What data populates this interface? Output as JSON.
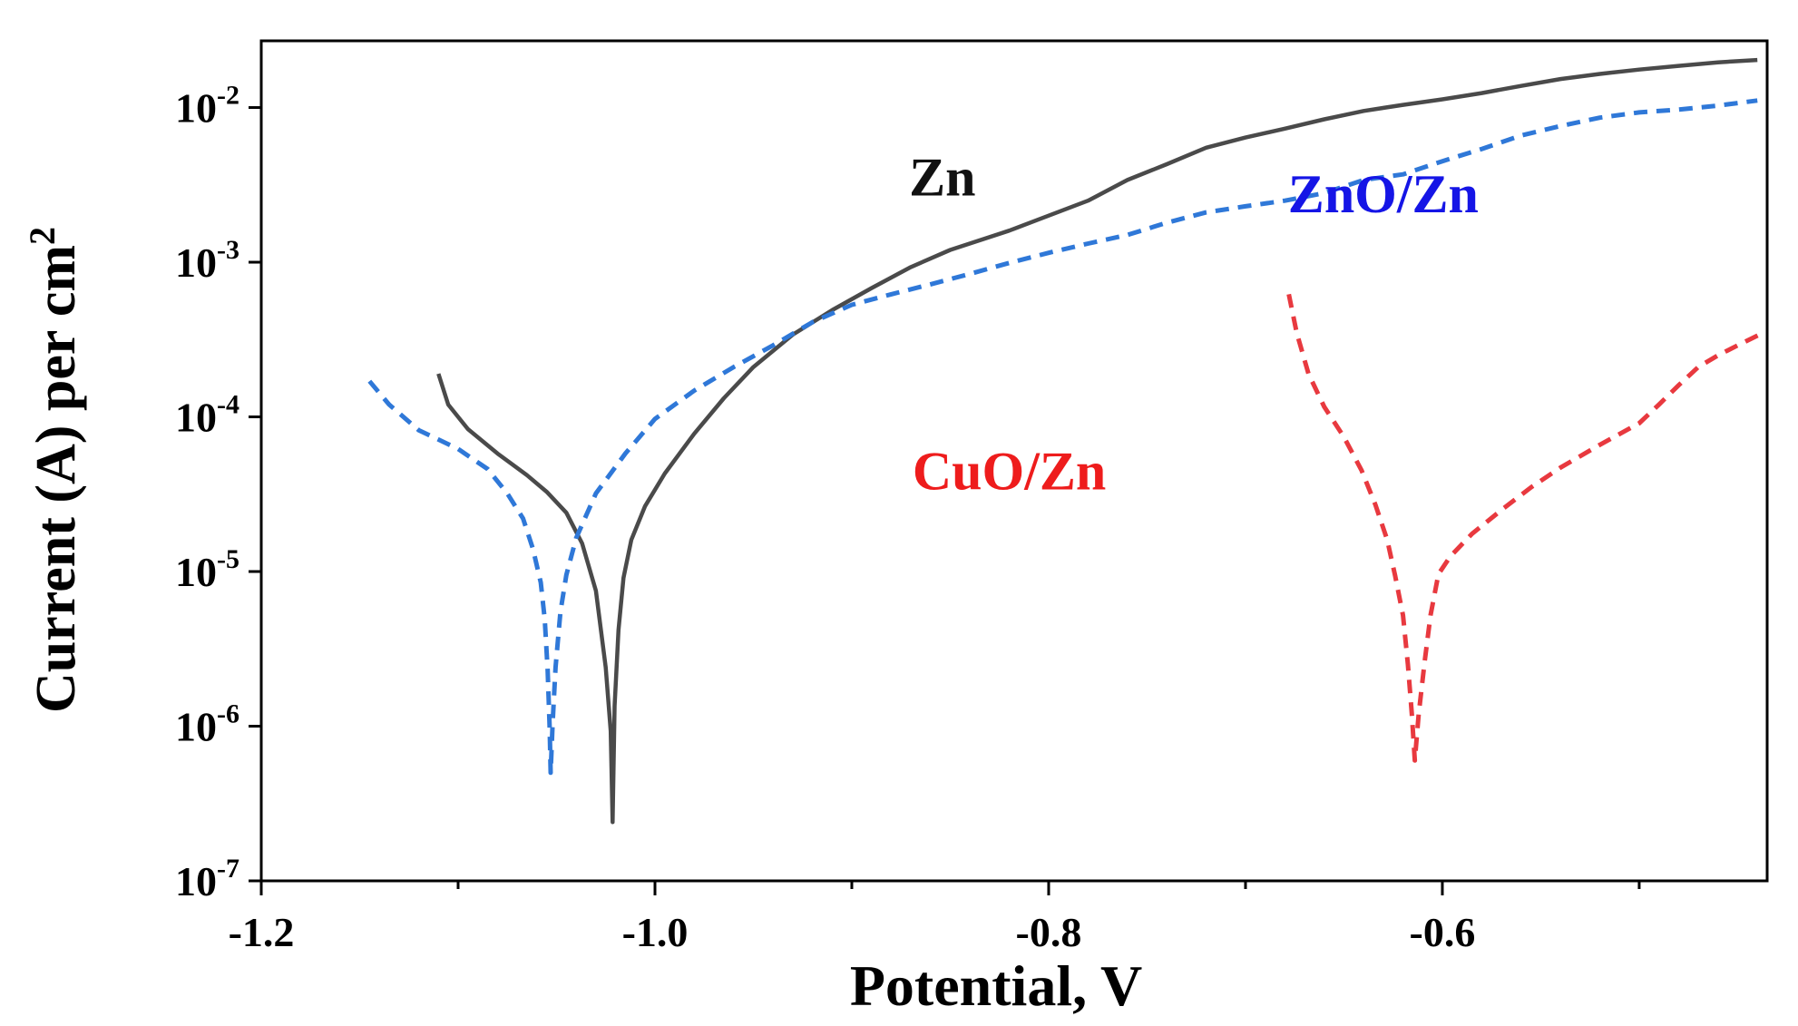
{
  "chart_data": {
    "type": "line",
    "xlabel": "Potential, V",
    "ylabel_main": "Current (A) per cm",
    "ylabel_sup": "2",
    "yscale": "log",
    "xlim": [
      -1.2,
      -0.435
    ],
    "ylim": [
      1e-07,
      0.027
    ],
    "x_ticks": [
      {
        "value": -1.2,
        "label": "-1.2"
      },
      {
        "value": -1.0,
        "label": "-1.0"
      },
      {
        "value": -0.8,
        "label": "-0.8"
      },
      {
        "value": -0.6,
        "label": "-0.6"
      }
    ],
    "x_minor_ticks": [
      -1.1,
      -0.9,
      -0.7,
      -0.5
    ],
    "y_ticks": [
      {
        "value": 1e-07,
        "base": "10",
        "exp": "-7"
      },
      {
        "value": 1e-06,
        "base": "10",
        "exp": "-6"
      },
      {
        "value": 1e-05,
        "base": "10",
        "exp": "-5"
      },
      {
        "value": 0.0001,
        "base": "10",
        "exp": "-4"
      },
      {
        "value": 0.001,
        "base": "10",
        "exp": "-3"
      },
      {
        "value": 0.01,
        "base": "10",
        "exp": "-2"
      }
    ],
    "series": [
      {
        "name": "Zn",
        "label": "Zn",
        "color": "#4a4a4a",
        "label_color": "#111111",
        "dash": "solid",
        "label_anchor": {
          "x": -0.854,
          "y": 0.0027
        },
        "points": [
          [
            -1.11,
            0.00019
          ],
          [
            -1.105,
            0.00012
          ],
          [
            -1.095,
            8.34e-05
          ],
          [
            -1.08,
            5.8e-05
          ],
          [
            -1.065,
            4.2e-05
          ],
          [
            -1.055,
            3.28e-05
          ],
          [
            -1.045,
            2.4e-05
          ],
          [
            -1.037,
            1.52e-05
          ],
          [
            -1.03,
            7.5e-06
          ],
          [
            -1.025,
            2.4e-06
          ],
          [
            -1.0225,
            9.3e-07
          ],
          [
            -1.0215,
            2.4e-07
          ],
          [
            -1.0205,
            1.35e-06
          ],
          [
            -1.0185,
            4.2e-06
          ],
          [
            -1.016,
            9.1e-06
          ],
          [
            -1.012,
            1.6e-05
          ],
          [
            -1.005,
            2.65e-05
          ],
          [
            -0.995,
            4.3e-05
          ],
          [
            -0.98,
            7.8e-05
          ],
          [
            -0.965,
            0.000132
          ],
          [
            -0.95,
            0.00021
          ],
          [
            -0.93,
            0.00034
          ],
          [
            -0.91,
            0.00049
          ],
          [
            -0.89,
            0.00068
          ],
          [
            -0.87,
            0.00093
          ],
          [
            -0.85,
            0.0012
          ],
          [
            -0.82,
            0.0016
          ],
          [
            -0.8,
            0.002
          ],
          [
            -0.78,
            0.0025
          ],
          [
            -0.76,
            0.0034
          ],
          [
            -0.74,
            0.0043
          ],
          [
            -0.72,
            0.0055
          ],
          [
            -0.7,
            0.0064
          ],
          [
            -0.68,
            0.0073
          ],
          [
            -0.66,
            0.0084
          ],
          [
            -0.64,
            0.0095
          ],
          [
            -0.62,
            0.0104
          ],
          [
            -0.6,
            0.0113
          ],
          [
            -0.58,
            0.0124
          ],
          [
            -0.56,
            0.0138
          ],
          [
            -0.54,
            0.0153
          ],
          [
            -0.52,
            0.0165
          ],
          [
            -0.5,
            0.0176
          ],
          [
            -0.48,
            0.0186
          ],
          [
            -0.46,
            0.0196
          ],
          [
            -0.44,
            0.0203
          ]
        ]
      },
      {
        "name": "ZnO/Zn",
        "label": "ZnO/Zn",
        "color": "#2f78d8",
        "label_color": "#1515e6",
        "dash": "dashed",
        "label_anchor": {
          "x": -0.63,
          "y": 0.0021
        },
        "points": [
          [
            -1.145,
            0.00017
          ],
          [
            -1.135,
            0.00012
          ],
          [
            -1.12,
            8.2e-05
          ],
          [
            -1.1,
            6.2e-05
          ],
          [
            -1.085,
            4.6e-05
          ],
          [
            -1.075,
            3.2e-05
          ],
          [
            -1.067,
            2.2e-05
          ],
          [
            -1.062,
            1.4e-05
          ],
          [
            -1.058,
            8.5e-06
          ],
          [
            -1.056,
            4.9e-06
          ],
          [
            -1.0545,
            2.3e-06
          ],
          [
            -1.0535,
            9.8e-07
          ],
          [
            -1.053,
            5e-07
          ],
          [
            -1.052,
            1.05e-06
          ],
          [
            -1.0505,
            2.4e-06
          ],
          [
            -1.048,
            5.5e-06
          ],
          [
            -1.045,
            9.5e-06
          ],
          [
            -1.04,
            1.65e-05
          ],
          [
            -1.03,
            3.2e-05
          ],
          [
            -1.015,
            5.8e-05
          ],
          [
            -1.0,
            9.7e-05
          ],
          [
            -0.98,
            0.000148
          ],
          [
            -0.96,
            0.00021
          ],
          [
            -0.94,
            0.00029
          ],
          [
            -0.92,
            0.00041
          ],
          [
            -0.9,
            0.00053
          ],
          [
            -0.88,
            0.00062
          ],
          [
            -0.86,
            0.00072
          ],
          [
            -0.84,
            0.00084
          ],
          [
            -0.82,
            0.00099
          ],
          [
            -0.8,
            0.00115
          ],
          [
            -0.78,
            0.00132
          ],
          [
            -0.76,
            0.0015
          ],
          [
            -0.74,
            0.0018
          ],
          [
            -0.72,
            0.0021
          ],
          [
            -0.7,
            0.0023
          ],
          [
            -0.68,
            0.0025
          ],
          [
            -0.66,
            0.0028
          ],
          [
            -0.64,
            0.0034
          ],
          [
            -0.62,
            0.0037
          ],
          [
            -0.6,
            0.0045
          ],
          [
            -0.58,
            0.0054
          ],
          [
            -0.56,
            0.0066
          ],
          [
            -0.54,
            0.0076
          ],
          [
            -0.52,
            0.0086
          ],
          [
            -0.5,
            0.0093
          ],
          [
            -0.48,
            0.0097
          ],
          [
            -0.46,
            0.0103
          ],
          [
            -0.44,
            0.0111
          ]
        ]
      },
      {
        "name": "CuO/Zn",
        "label": "CuO/Zn",
        "color": "#e8393f",
        "label_color": "#ee1c1c",
        "dash": "dashed",
        "label_anchor": {
          "x": -0.82,
          "y": 3.4e-05
        },
        "points": [
          [
            -0.678,
            0.00062
          ],
          [
            -0.674,
            0.00035
          ],
          [
            -0.668,
            0.00019
          ],
          [
            -0.66,
            0.000116
          ],
          [
            -0.65,
            7.4e-05
          ],
          [
            -0.641,
            4.5e-05
          ],
          [
            -0.634,
            2.7e-05
          ],
          [
            -0.628,
            1.6e-05
          ],
          [
            -0.624,
            9.4e-06
          ],
          [
            -0.62,
            5.2e-06
          ],
          [
            -0.6175,
            2.5e-06
          ],
          [
            -0.6155,
            1.2e-06
          ],
          [
            -0.614,
            6e-07
          ],
          [
            -0.612,
            1.2e-06
          ],
          [
            -0.609,
            2.6e-06
          ],
          [
            -0.606,
            5.2e-06
          ],
          [
            -0.602,
            9.6e-06
          ],
          [
            -0.596,
            1.25e-05
          ],
          [
            -0.585,
            1.75e-05
          ],
          [
            -0.57,
            2.5e-05
          ],
          [
            -0.555,
            3.5e-05
          ],
          [
            -0.54,
            4.7e-05
          ],
          [
            -0.52,
            6.6e-05
          ],
          [
            -0.5,
            9.1e-05
          ],
          [
            -0.49,
            0.00012
          ],
          [
            -0.48,
            0.00016
          ],
          [
            -0.47,
            0.00021
          ],
          [
            -0.46,
            0.00025
          ],
          [
            -0.45,
            0.00029
          ],
          [
            -0.437,
            0.00035
          ]
        ]
      }
    ]
  }
}
